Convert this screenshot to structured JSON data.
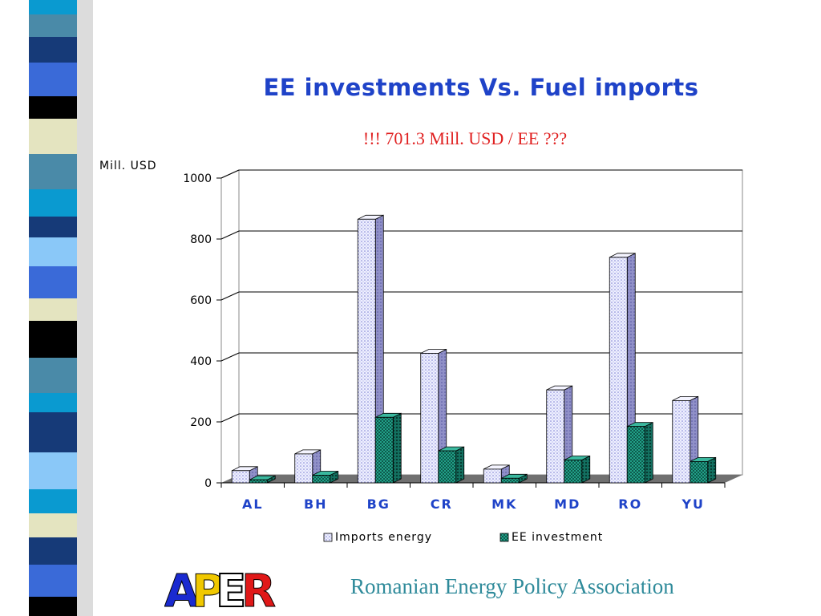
{
  "slide": {
    "title": "EE investments Vs. Fuel imports",
    "subtitle": "!!! 701.3 Mill. USD / EE ???",
    "footer": "Romanian Energy Policy Association",
    "logo_text": "APER"
  },
  "colors": {
    "title": "#1f43c8",
    "subtitle": "#e02020",
    "footer": "#2e8a9a",
    "imports_fill": "#dfe2ff",
    "ee_fill": "#1a8f7a",
    "category_labels": "#1f43c8"
  },
  "chart_data": {
    "type": "bar",
    "style": "3d clustered",
    "title": "",
    "ylabel": "Mill. USD",
    "xlabel": "",
    "ylim": [
      0,
      1000
    ],
    "yticks": [
      0,
      200,
      400,
      600,
      800,
      1000
    ],
    "grid": true,
    "legend_position": "bottom",
    "categories": [
      "AL",
      "BH",
      "BG",
      "CR",
      "MK",
      "MD",
      "RO",
      "YU"
    ],
    "series": [
      {
        "name": "Imports energy",
        "values": [
          40,
          95,
          865,
          425,
          45,
          305,
          740,
          270
        ]
      },
      {
        "name": "EE investment",
        "values": [
          10,
          25,
          215,
          105,
          15,
          75,
          185,
          70
        ]
      }
    ]
  }
}
